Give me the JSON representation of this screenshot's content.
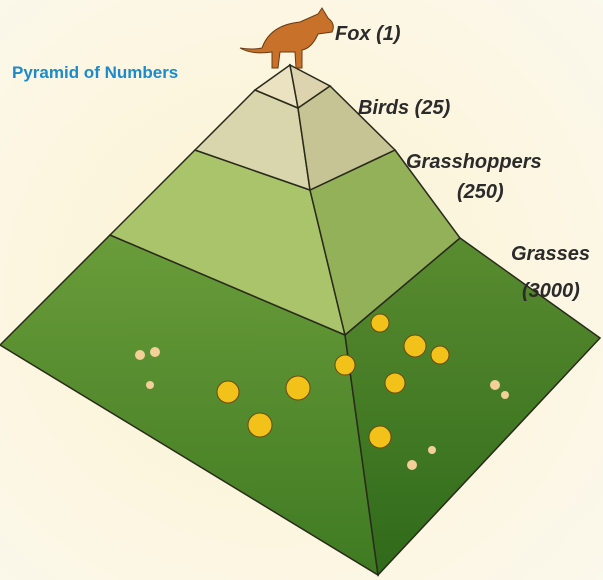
{
  "title": "Pyramid of Numbers",
  "levels": [
    {
      "lines": [
        "Fox (1)"
      ]
    },
    {
      "lines": [
        "Birds (25)"
      ]
    },
    {
      "lines": [
        "Grasshoppers",
        "(250)"
      ]
    },
    {
      "lines": [
        "Grasses",
        "(3000)"
      ]
    }
  ]
}
